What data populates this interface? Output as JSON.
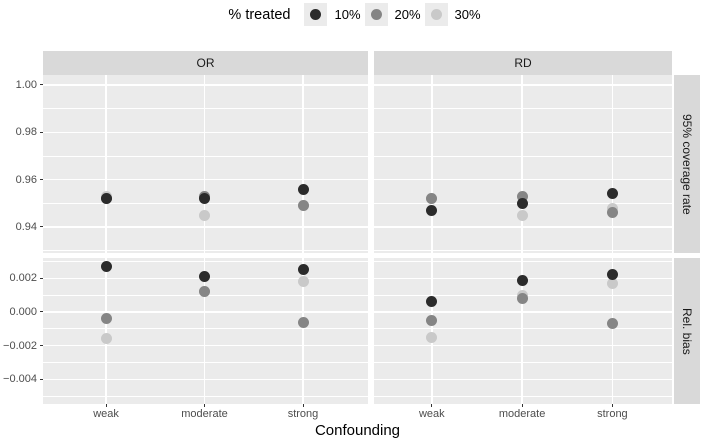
{
  "chart_data": {
    "type": "scatter",
    "xlabel": "Confounding",
    "x_categories": [
      "weak",
      "moderate",
      "strong"
    ],
    "facet_cols": [
      "OR",
      "RD"
    ],
    "facet_rows": [
      "95% coverage rate",
      "Rel. bias"
    ],
    "legend": {
      "title": "% treated",
      "position": "top",
      "entries": [
        {
          "label": "10%",
          "color": "#2b2b2b"
        },
        {
          "label": "20%",
          "color": "#858585"
        },
        {
          "label": "30%",
          "color": "#c9c9c9"
        }
      ]
    },
    "rows": [
      {
        "name": "95% coverage rate",
        "ylim": [
          0.929,
          1.0042
        ],
        "grid": true,
        "yticks": [
          {
            "value": 1.0,
            "label": "1.00"
          },
          {
            "value": 0.98,
            "label": "0.98"
          },
          {
            "value": 0.96,
            "label": "0.96"
          },
          {
            "value": 0.94,
            "label": "0.94"
          }
        ]
      },
      {
        "name": "Rel. bias",
        "ylim": [
          -0.00547,
          0.00321
        ],
        "grid": true,
        "yticks": [
          {
            "value": 0.002,
            "label": "0.002"
          },
          {
            "value": 0.0,
            "label": "0.000"
          },
          {
            "value": -0.002,
            "label": "−0.002"
          },
          {
            "value": -0.004,
            "label": "−0.004"
          }
        ]
      }
    ],
    "panels": [
      {
        "col": "OR",
        "row": "95% coverage rate",
        "series": [
          {
            "name": "10%",
            "values": [
              0.952,
              0.952,
              0.956
            ]
          },
          {
            "name": "20%",
            "values": [
              0.952,
              0.953,
              0.949
            ]
          },
          {
            "name": "30%",
            "values": [
              0.953,
              0.945,
              0.949
            ]
          }
        ]
      },
      {
        "col": "RD",
        "row": "95% coverage rate",
        "series": [
          {
            "name": "10%",
            "values": [
              0.947,
              0.95,
              0.954
            ]
          },
          {
            "name": "20%",
            "values": [
              0.952,
              0.953,
              0.946
            ]
          },
          {
            "name": "30%",
            "values": [
              0.952,
              0.945,
              0.948
            ]
          }
        ]
      },
      {
        "col": "OR",
        "row": "Rel. bias",
        "series": [
          {
            "name": "10%",
            "values": [
              0.0027,
              0.0021,
              0.0025
            ]
          },
          {
            "name": "20%",
            "values": [
              -0.0004,
              0.0012,
              -0.0006
            ]
          },
          {
            "name": "30%",
            "values": [
              -0.0016,
              0.0012,
              0.0018
            ]
          }
        ]
      },
      {
        "col": "RD",
        "row": "Rel. bias",
        "series": [
          {
            "name": "10%",
            "values": [
              0.0006,
              0.0019,
              0.0022
            ]
          },
          {
            "name": "20%",
            "values": [
              -0.0005,
              0.0008,
              -0.0007
            ]
          },
          {
            "name": "30%",
            "values": [
              -0.0015,
              0.001,
              0.0017
            ]
          }
        ]
      }
    ],
    "style": {
      "background": "#ffffff",
      "panel_bg": "#ebebeb",
      "strip_bg": "#d9d9d9",
      "grid_color": "#ffffff",
      "tick_label_color": "#4d4d4d",
      "text_color": "#1a1a1a"
    }
  }
}
